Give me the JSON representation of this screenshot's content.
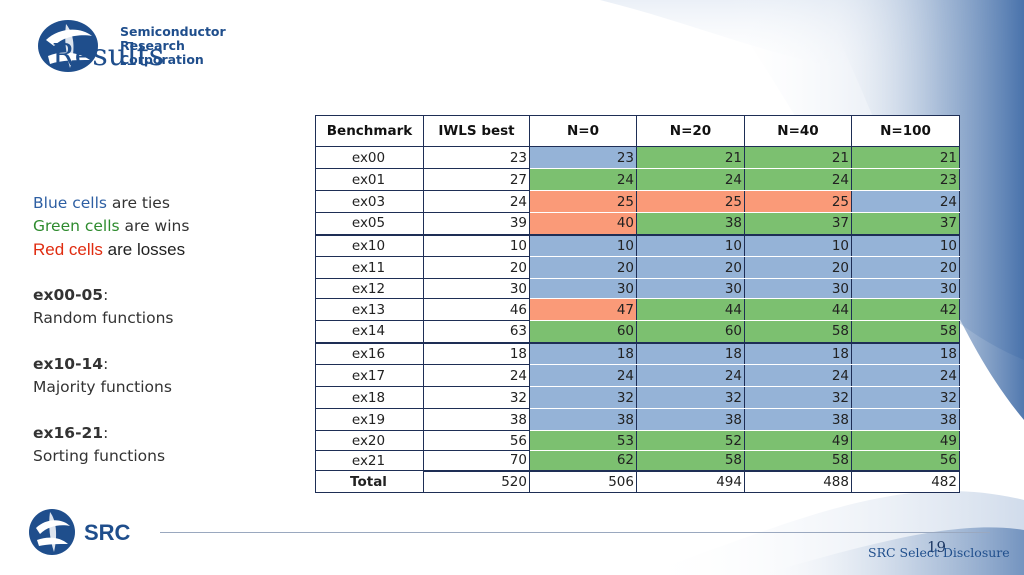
{
  "slide": {
    "title": "Results",
    "page_number": "19",
    "footer_text": "SRC Select Disclosure"
  },
  "logo": {
    "line1": "Semiconductor",
    "line2": "Research",
    "line3": "Corporation",
    "footer_mark": "SRC"
  },
  "legend": {
    "blue_word": "Blue cells",
    "blue_rest": " are ties",
    "green_word": "Green cells",
    "green_rest": " are wins",
    "red_word": "Red cells",
    "red_rest": " are losses",
    "group1_label": "ex00-05",
    "group1_desc": "Random functions",
    "group2_label": "ex10-14",
    "group2_desc": "Majority functions",
    "group3_label": "ex16-21",
    "group3_desc": "Sorting functions",
    "colon": ":"
  },
  "colors": {
    "tie": "#95b3d7",
    "win": "#7cc070",
    "loss": "#fa9a78"
  },
  "table": {
    "headers": [
      "Benchmark",
      "IWLS best",
      "N=0",
      "N=20",
      "N=40",
      "N=100"
    ],
    "rows": [
      {
        "name": "ex00",
        "iwls": "23",
        "vals": [
          "23",
          "21",
          "21",
          "21"
        ],
        "cls": [
          "tie",
          "win",
          "win",
          "win"
        ],
        "group_start": false
      },
      {
        "name": "ex01",
        "iwls": "27",
        "vals": [
          "24",
          "24",
          "24",
          "23"
        ],
        "cls": [
          "win",
          "win",
          "win",
          "win"
        ],
        "group_start": false
      },
      {
        "name": "ex03",
        "iwls": "24",
        "vals": [
          "25",
          "25",
          "25",
          "24"
        ],
        "cls": [
          "loss",
          "loss",
          "loss",
          "tie"
        ],
        "group_start": false
      },
      {
        "name": "ex05",
        "iwls": "39",
        "vals": [
          "40",
          "38",
          "37",
          "37"
        ],
        "cls": [
          "loss",
          "win",
          "win",
          "win"
        ],
        "group_start": false
      },
      {
        "name": "ex10",
        "iwls": "10",
        "vals": [
          "10",
          "10",
          "10",
          "10"
        ],
        "cls": [
          "tie",
          "tie",
          "tie",
          "tie"
        ],
        "group_start": true
      },
      {
        "name": "ex11",
        "iwls": "20",
        "vals": [
          "20",
          "20",
          "20",
          "20"
        ],
        "cls": [
          "tie",
          "tie",
          "tie",
          "tie"
        ],
        "group_start": false
      },
      {
        "name": "ex12",
        "iwls": "30",
        "vals": [
          "30",
          "30",
          "30",
          "30"
        ],
        "cls": [
          "tie",
          "tie",
          "tie",
          "tie"
        ],
        "group_start": false
      },
      {
        "name": "ex13",
        "iwls": "46",
        "vals": [
          "47",
          "44",
          "44",
          "42"
        ],
        "cls": [
          "loss",
          "win",
          "win",
          "win"
        ],
        "group_start": false
      },
      {
        "name": "ex14",
        "iwls": "63",
        "vals": [
          "60",
          "60",
          "58",
          "58"
        ],
        "cls": [
          "win",
          "win",
          "win",
          "win"
        ],
        "group_start": false
      },
      {
        "name": "ex16",
        "iwls": "18",
        "vals": [
          "18",
          "18",
          "18",
          "18"
        ],
        "cls": [
          "tie",
          "tie",
          "tie",
          "tie"
        ],
        "group_start": true
      },
      {
        "name": "ex17",
        "iwls": "24",
        "vals": [
          "24",
          "24",
          "24",
          "24"
        ],
        "cls": [
          "tie",
          "tie",
          "tie",
          "tie"
        ],
        "group_start": false
      },
      {
        "name": "ex18",
        "iwls": "32",
        "vals": [
          "32",
          "32",
          "32",
          "32"
        ],
        "cls": [
          "tie",
          "tie",
          "tie",
          "tie"
        ],
        "group_start": false
      },
      {
        "name": "ex19",
        "iwls": "38",
        "vals": [
          "38",
          "38",
          "38",
          "38"
        ],
        "cls": [
          "tie",
          "tie",
          "tie",
          "tie"
        ],
        "group_start": false
      },
      {
        "name": "ex20",
        "iwls": "56",
        "vals": [
          "53",
          "52",
          "49",
          "49"
        ],
        "cls": [
          "win",
          "win",
          "win",
          "win"
        ],
        "group_start": false
      },
      {
        "name": "ex21",
        "iwls": "70",
        "vals": [
          "62",
          "58",
          "58",
          "56"
        ],
        "cls": [
          "win",
          "win",
          "win",
          "win"
        ],
        "group_start": false
      }
    ],
    "total": {
      "label": "Total",
      "iwls": "520",
      "vals": [
        "506",
        "494",
        "488",
        "482"
      ]
    }
  }
}
